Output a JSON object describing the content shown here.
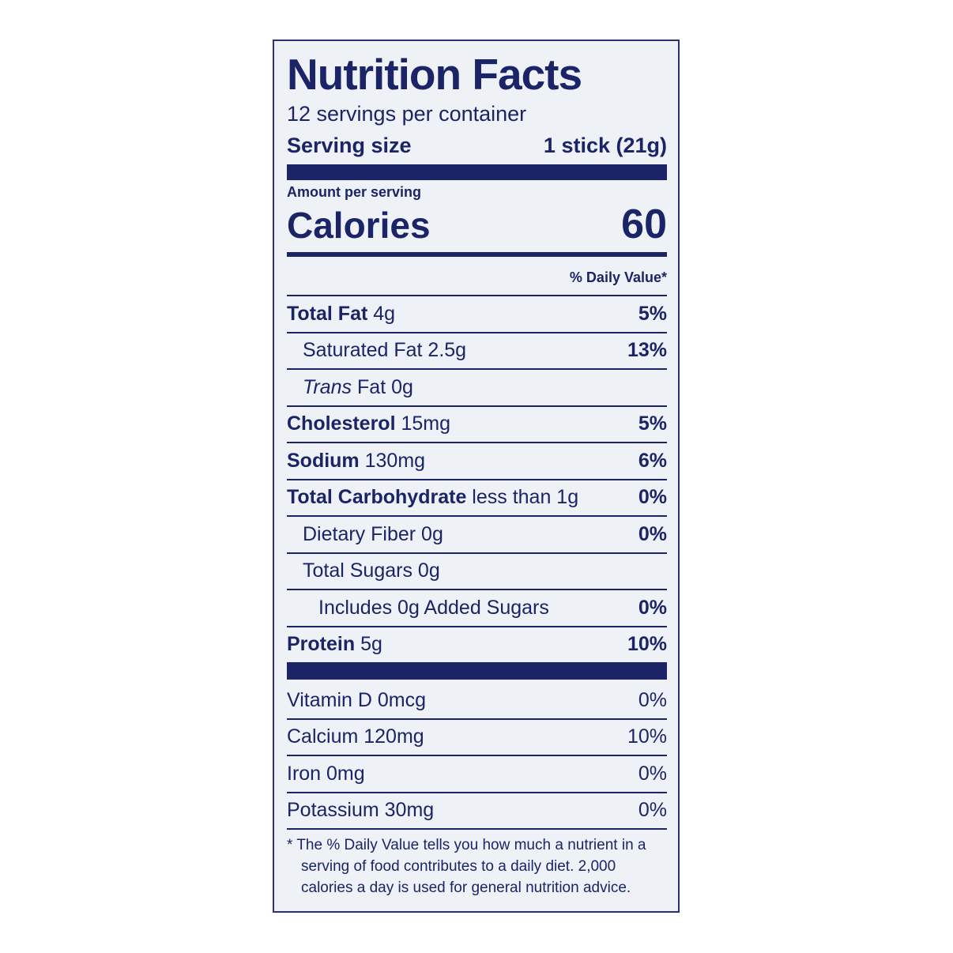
{
  "label": {
    "title": "Nutrition Facts",
    "servings": "12 servings per container",
    "serving_size_label": "Serving size",
    "serving_size_value": "1 stick (21g)",
    "amount_per_serving": "Amount per serving",
    "calories_label": "Calories",
    "calories_value": "60",
    "daily_value_header": "% Daily Value*",
    "nutrients": [
      {
        "name": "Total Fat",
        "amount": "4g",
        "dv": "5%",
        "bold": true
      },
      {
        "name": "Saturated Fat 2.5g",
        "dv": "13%",
        "indent": 1
      },
      {
        "name_italic": "Trans",
        "name": "Fat 0g",
        "indent": 1
      },
      {
        "name": "Cholesterol",
        "amount": "15mg",
        "dv": "5%",
        "bold": true
      },
      {
        "name": "Sodium",
        "amount": "130mg",
        "dv": "6%",
        "bold": true
      },
      {
        "name": "Total Carbohydrate",
        "amount": "less than 1g",
        "dv": "0%",
        "bold": true
      },
      {
        "name": "Dietary Fiber 0g",
        "dv": "0%",
        "indent": 1
      },
      {
        "name": "Total Sugars 0g",
        "indent": 1
      },
      {
        "name": "Includes 0g Added Sugars",
        "dv": "0%",
        "indent": 2
      },
      {
        "name": "Protein",
        "amount": "5g",
        "dv": "10%",
        "bold": true
      }
    ],
    "vitamins": [
      {
        "name": "Vitamin D 0mcg",
        "dv": "0%"
      },
      {
        "name": "Calcium 120mg",
        "dv": "10%"
      },
      {
        "name": "Iron 0mg",
        "dv": "0%"
      },
      {
        "name": "Potassium 30mg",
        "dv": "0%"
      }
    ],
    "footnote": "* The % Daily Value tells you how much a nutrient in a serving of food contributes to a daily diet. 2,000 calories a day is used for general nutrition advice."
  }
}
